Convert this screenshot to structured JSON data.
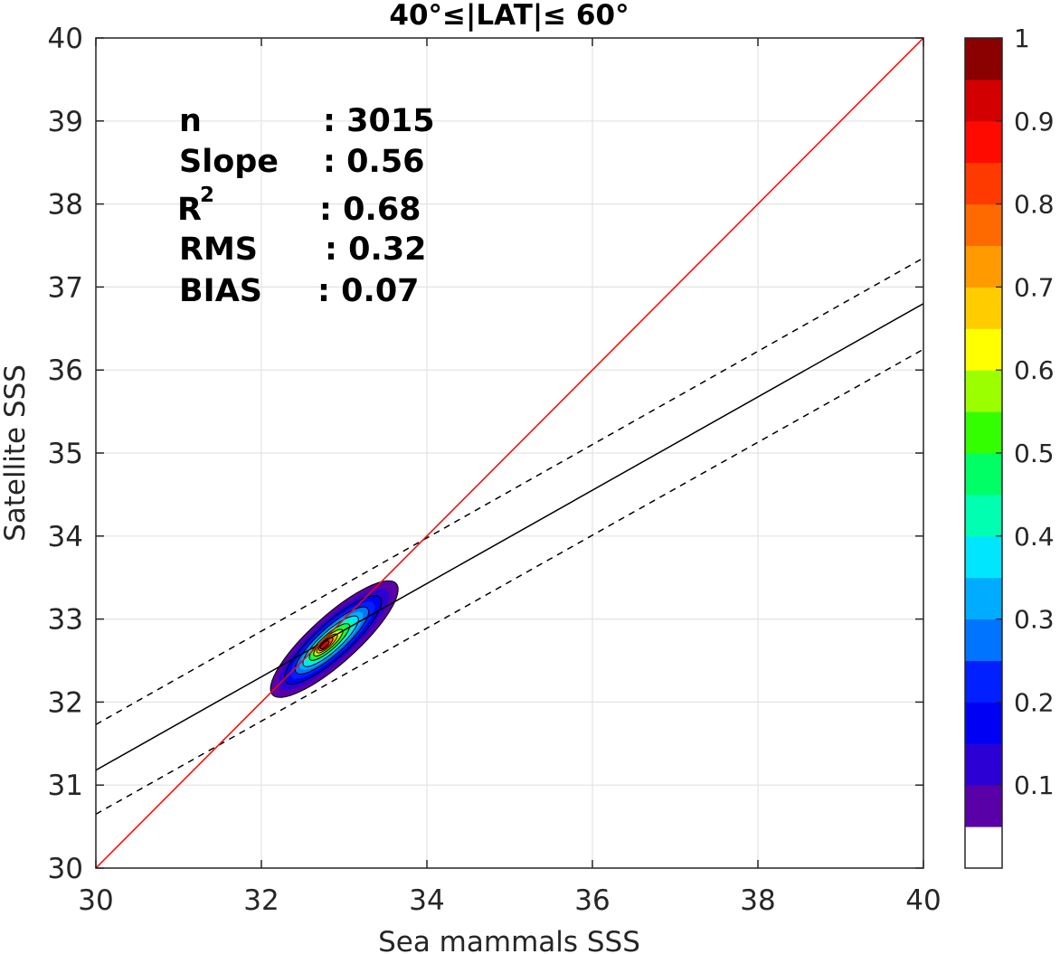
{
  "chart_data": {
    "type": "contour",
    "title": "40°≤|LAT|≤ 60°",
    "xlabel": "Sea mammals  SSS",
    "ylabel": "Satellite SSS",
    "xlim": [
      30,
      40
    ],
    "ylim": [
      30,
      40
    ],
    "xticks": [
      "30",
      "32",
      "34",
      "36",
      "38",
      "40"
    ],
    "yticks": [
      "30",
      "31",
      "32",
      "33",
      "34",
      "35",
      "36",
      "37",
      "38",
      "39",
      "40"
    ],
    "grid": true,
    "stats": [
      {
        "label": "n",
        "value": ": 3015"
      },
      {
        "label": "Slope",
        "value": ": 0.56"
      },
      {
        "label": "R",
        "sup": "2",
        "value": ": 0.68"
      },
      {
        "label": "RMS",
        "value": ": 0.32"
      },
      {
        "label": "BIAS",
        "value": ": 0.07"
      }
    ],
    "lines": {
      "one_to_one": {
        "from": [
          30,
          30
        ],
        "to": [
          40,
          40
        ],
        "color": "#ff0000"
      },
      "regression": {
        "from": [
          30,
          31.18
        ],
        "to": [
          40,
          36.8
        ],
        "color": "#000000"
      },
      "upper_bound": {
        "from": [
          30,
          31.73
        ],
        "to": [
          40,
          37.35
        ],
        "style": "dashed"
      },
      "lower_bound": {
        "from": [
          30,
          30.65
        ],
        "to": [
          40,
          36.25
        ],
        "style": "dashed"
      }
    },
    "density_peak": {
      "x": 32.75,
      "y": 32.68,
      "value": 1
    },
    "colorbar": {
      "ticks": [
        "0.1",
        "0.2",
        "0.3",
        "0.4",
        "0.5",
        "0.6",
        "0.7",
        "0.8",
        "0.9",
        "1"
      ],
      "colors": [
        "#ffffff",
        "#5a00a8",
        "#2c00d5",
        "#0000f5",
        "#0020ff",
        "#0074ff",
        "#00acff",
        "#00e6ff",
        "#00ffb0",
        "#00ff64",
        "#34ff00",
        "#9cff00",
        "#ffff00",
        "#ffcc00",
        "#ff9a00",
        "#ff6a00",
        "#ff3a00",
        "#ff0a00",
        "#d20000",
        "#8b0000"
      ]
    }
  }
}
